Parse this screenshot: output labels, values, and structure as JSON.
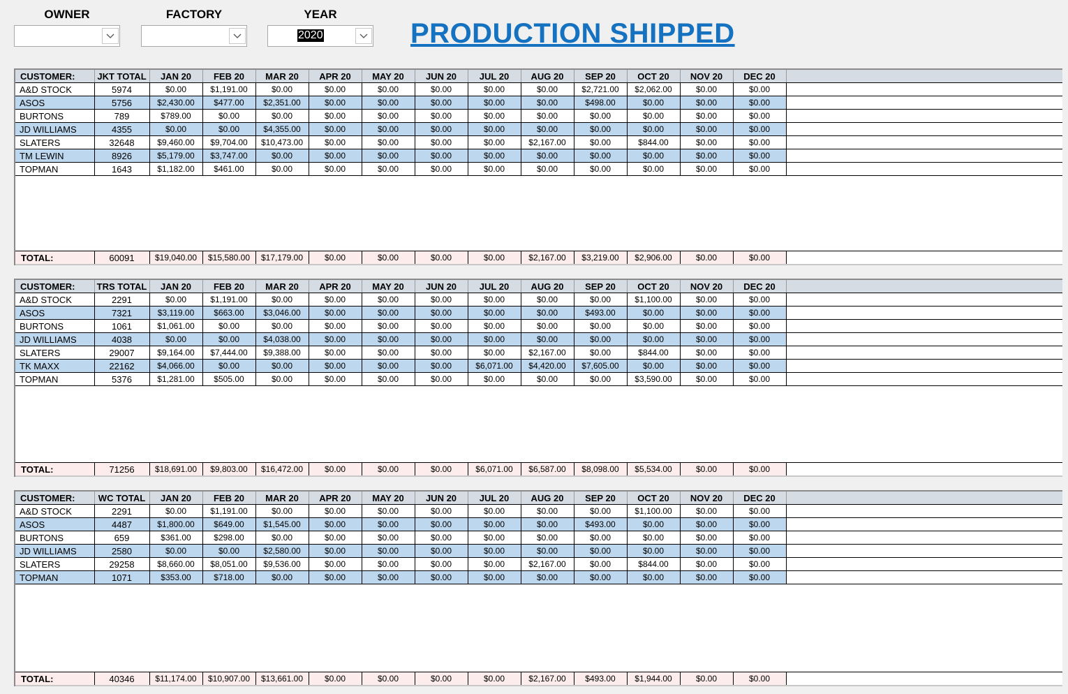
{
  "filters": {
    "owner_label": "OWNER",
    "owner_value": "",
    "factory_label": "FACTORY",
    "factory_value": "",
    "year_label": "YEAR",
    "year_value": "2020"
  },
  "title": "PRODUCTION SHIPPED",
  "columns": {
    "customer": "CUSTOMER:",
    "months": [
      "JAN 20",
      "FEB 20",
      "MAR 20",
      "APR 20",
      "MAY 20",
      "JUN 20",
      "JUL 20",
      "AUG 20",
      "SEP 20",
      "OCT 20",
      "NOV 20",
      "DEC 20"
    ],
    "total_label": "TOTAL:"
  },
  "sections": [
    {
      "total_header": "JKT TOTAL",
      "rows": [
        {
          "customer": "A&D STOCK",
          "total": "5974",
          "months": [
            "$0.00",
            "$1,191.00",
            "$0.00",
            "$0.00",
            "$0.00",
            "$0.00",
            "$0.00",
            "$0.00",
            "$2,721.00",
            "$2,062.00",
            "$0.00",
            "$0.00"
          ]
        },
        {
          "customer": "ASOS",
          "total": "5756",
          "months": [
            "$2,430.00",
            "$477.00",
            "$2,351.00",
            "$0.00",
            "$0.00",
            "$0.00",
            "$0.00",
            "$0.00",
            "$498.00",
            "$0.00",
            "$0.00",
            "$0.00"
          ]
        },
        {
          "customer": "BURTONS",
          "total": "789",
          "months": [
            "$789.00",
            "$0.00",
            "$0.00",
            "$0.00",
            "$0.00",
            "$0.00",
            "$0.00",
            "$0.00",
            "$0.00",
            "$0.00",
            "$0.00",
            "$0.00"
          ]
        },
        {
          "customer": "JD WILLIAMS",
          "total": "4355",
          "months": [
            "$0.00",
            "$0.00",
            "$4,355.00",
            "$0.00",
            "$0.00",
            "$0.00",
            "$0.00",
            "$0.00",
            "$0.00",
            "$0.00",
            "$0.00",
            "$0.00"
          ]
        },
        {
          "customer": "SLATERS",
          "total": "32648",
          "months": [
            "$9,460.00",
            "$9,704.00",
            "$10,473.00",
            "$0.00",
            "$0.00",
            "$0.00",
            "$0.00",
            "$2,167.00",
            "$0.00",
            "$844.00",
            "$0.00",
            "$0.00"
          ]
        },
        {
          "customer": "TM LEWIN",
          "total": "8926",
          "months": [
            "$5,179.00",
            "$3,747.00",
            "$0.00",
            "$0.00",
            "$0.00",
            "$0.00",
            "$0.00",
            "$0.00",
            "$0.00",
            "$0.00",
            "$0.00",
            "$0.00"
          ]
        },
        {
          "customer": "TOPMAN",
          "total": "1643",
          "months": [
            "$1,182.00",
            "$461.00",
            "$0.00",
            "$0.00",
            "$0.00",
            "$0.00",
            "$0.00",
            "$0.00",
            "$0.00",
            "$0.00",
            "$0.00",
            "$0.00"
          ]
        }
      ],
      "totals": {
        "total": "60091",
        "months": [
          "$19,040.00",
          "$15,580.00",
          "$17,179.00",
          "$0.00",
          "$0.00",
          "$0.00",
          "$0.00",
          "$2,167.00",
          "$3,219.00",
          "$2,906.00",
          "$0.00",
          "$0.00"
        ]
      }
    },
    {
      "total_header": "TRS TOTAL",
      "rows": [
        {
          "customer": "A&D STOCK",
          "total": "2291",
          "months": [
            "$0.00",
            "$1,191.00",
            "$0.00",
            "$0.00",
            "$0.00",
            "$0.00",
            "$0.00",
            "$0.00",
            "$0.00",
            "$1,100.00",
            "$0.00",
            "$0.00"
          ]
        },
        {
          "customer": "ASOS",
          "total": "7321",
          "months": [
            "$3,119.00",
            "$663.00",
            "$3,046.00",
            "$0.00",
            "$0.00",
            "$0.00",
            "$0.00",
            "$0.00",
            "$493.00",
            "$0.00",
            "$0.00",
            "$0.00"
          ]
        },
        {
          "customer": "BURTONS",
          "total": "1061",
          "months": [
            "$1,061.00",
            "$0.00",
            "$0.00",
            "$0.00",
            "$0.00",
            "$0.00",
            "$0.00",
            "$0.00",
            "$0.00",
            "$0.00",
            "$0.00",
            "$0.00"
          ]
        },
        {
          "customer": "JD WILLIAMS",
          "total": "4038",
          "months": [
            "$0.00",
            "$0.00",
            "$4,038.00",
            "$0.00",
            "$0.00",
            "$0.00",
            "$0.00",
            "$0.00",
            "$0.00",
            "$0.00",
            "$0.00",
            "$0.00"
          ]
        },
        {
          "customer": "SLATERS",
          "total": "29007",
          "months": [
            "$9,164.00",
            "$7,444.00",
            "$9,388.00",
            "$0.00",
            "$0.00",
            "$0.00",
            "$0.00",
            "$2,167.00",
            "$0.00",
            "$844.00",
            "$0.00",
            "$0.00"
          ]
        },
        {
          "customer": "TK MAXX",
          "total": "22162",
          "months": [
            "$4,066.00",
            "$0.00",
            "$0.00",
            "$0.00",
            "$0.00",
            "$0.00",
            "$6,071.00",
            "$4,420.00",
            "$7,605.00",
            "$0.00",
            "$0.00",
            "$0.00"
          ]
        },
        {
          "customer": "TOPMAN",
          "total": "5376",
          "months": [
            "$1,281.00",
            "$505.00",
            "$0.00",
            "$0.00",
            "$0.00",
            "$0.00",
            "$0.00",
            "$0.00",
            "$0.00",
            "$3,590.00",
            "$0.00",
            "$0.00"
          ]
        }
      ],
      "totals": {
        "total": "71256",
        "months": [
          "$18,691.00",
          "$9,803.00",
          "$16,472.00",
          "$0.00",
          "$0.00",
          "$0.00",
          "$6,071.00",
          "$6,587.00",
          "$8,098.00",
          "$5,534.00",
          "$0.00",
          "$0.00"
        ]
      }
    },
    {
      "total_header": "WC TOTAL",
      "rows": [
        {
          "customer": "A&D STOCK",
          "total": "2291",
          "months": [
            "$0.00",
            "$1,191.00",
            "$0.00",
            "$0.00",
            "$0.00",
            "$0.00",
            "$0.00",
            "$0.00",
            "$0.00",
            "$1,100.00",
            "$0.00",
            "$0.00"
          ]
        },
        {
          "customer": "ASOS",
          "total": "4487",
          "months": [
            "$1,800.00",
            "$649.00",
            "$1,545.00",
            "$0.00",
            "$0.00",
            "$0.00",
            "$0.00",
            "$0.00",
            "$493.00",
            "$0.00",
            "$0.00",
            "$0.00"
          ]
        },
        {
          "customer": "BURTONS",
          "total": "659",
          "months": [
            "$361.00",
            "$298.00",
            "$0.00",
            "$0.00",
            "$0.00",
            "$0.00",
            "$0.00",
            "$0.00",
            "$0.00",
            "$0.00",
            "$0.00",
            "$0.00"
          ]
        },
        {
          "customer": "JD WILLIAMS",
          "total": "2580",
          "months": [
            "$0.00",
            "$0.00",
            "$2,580.00",
            "$0.00",
            "$0.00",
            "$0.00",
            "$0.00",
            "$0.00",
            "$0.00",
            "$0.00",
            "$0.00",
            "$0.00"
          ]
        },
        {
          "customer": "SLATERS",
          "total": "29258",
          "months": [
            "$8,660.00",
            "$8,051.00",
            "$9,536.00",
            "$0.00",
            "$0.00",
            "$0.00",
            "$0.00",
            "$2,167.00",
            "$0.00",
            "$844.00",
            "$0.00",
            "$0.00"
          ]
        },
        {
          "customer": "TOPMAN",
          "total": "1071",
          "months": [
            "$353.00",
            "$718.00",
            "$0.00",
            "$0.00",
            "$0.00",
            "$0.00",
            "$0.00",
            "$0.00",
            "$0.00",
            "$0.00",
            "$0.00",
            "$0.00"
          ]
        }
      ],
      "totals": {
        "total": "40346",
        "months": [
          "$11,174.00",
          "$10,907.00",
          "$13,661.00",
          "$0.00",
          "$0.00",
          "$0.00",
          "$0.00",
          "$2,167.00",
          "$493.00",
          "$1,944.00",
          "$0.00",
          "$0.00"
        ]
      }
    }
  ]
}
